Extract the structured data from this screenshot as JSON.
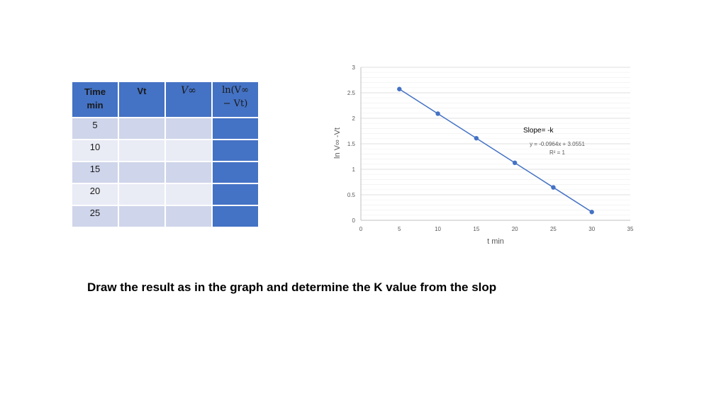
{
  "table": {
    "headers": {
      "time_line1": "Time",
      "time_line2": "min",
      "vt": "Vt",
      "vinf": "V∞",
      "ln_line1": "ln(V∞",
      "ln_line2": "− Vt)"
    },
    "rows": [
      {
        "time": "5"
      },
      {
        "time": "10"
      },
      {
        "time": "15"
      },
      {
        "time": "20"
      },
      {
        "time": "25"
      }
    ]
  },
  "chart_data": {
    "type": "scatter",
    "series": [
      {
        "x": [
          5,
          10,
          15,
          20,
          25,
          30
        ],
        "y": [
          2.573,
          2.091,
          1.609,
          1.127,
          0.645,
          0.163
        ],
        "color": "#4472c4",
        "line": true
      }
    ],
    "xlabel": "t min",
    "ylabel": "ln V∞ -Vt",
    "xlim": [
      0,
      35
    ],
    "ylim": [
      0,
      3
    ],
    "xticks": [
      0,
      5,
      10,
      15,
      20,
      25,
      30,
      35
    ],
    "yticks": [
      0,
      0.5,
      1,
      1.5,
      2,
      2.5,
      3
    ],
    "grid": true,
    "annotations": {
      "slope_label": "Slope= -k",
      "equation": "y = -0.0964x + 3.0551",
      "r_squared": "R² = 1"
    }
  },
  "caption": "Draw the result as in the graph and determine the K value from the slop"
}
